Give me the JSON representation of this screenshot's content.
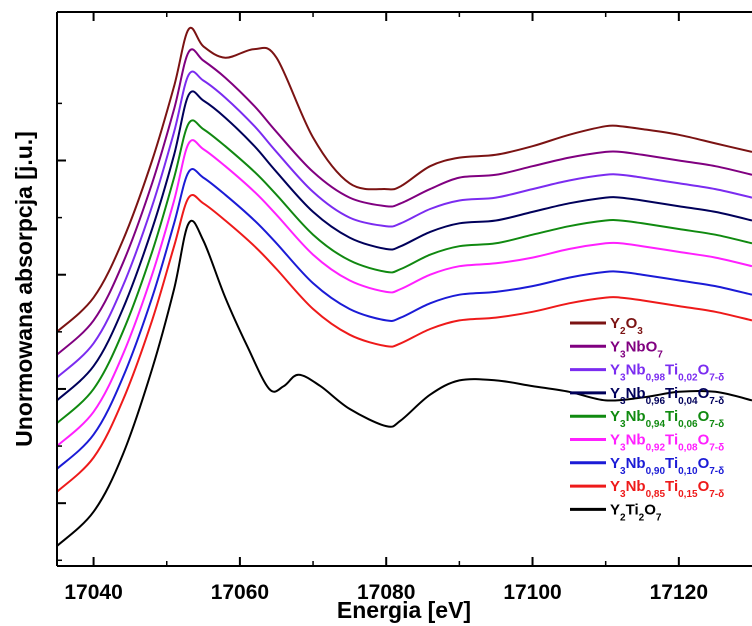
{
  "chart_data": {
    "type": "line",
    "xlabel": "Energia [eV]",
    "ylabel": "Unormowana absorpcja [j.u.]",
    "xlim": [
      17035,
      17130
    ],
    "ylim": [
      -0.1,
      9.6
    ],
    "x_ticks": [
      17040,
      17060,
      17080,
      17100,
      17120
    ],
    "x_tick_labels": [
      "17040",
      "17060",
      "17080",
      "17100",
      "17120"
    ],
    "y_ticks": [
      1.0,
      3.0,
      5.0,
      7.0
    ],
    "y_tick_labels": [],
    "legend_position": "lower-right",
    "series": [
      {
        "name": "Y2O3",
        "label_parts": [
          [
            "Y",
            0
          ],
          [
            "2",
            1
          ],
          [
            "O",
            0
          ],
          [
            "3",
            1
          ]
        ],
        "color": "#7b1313",
        "x": [
          17035,
          17040,
          17044,
          17048,
          17051,
          17053,
          17055,
          17058,
          17062,
          17065,
          17070,
          17075,
          17080,
          17082,
          17086,
          17090,
          17095,
          17100,
          17105,
          17110,
          17112,
          17115,
          17120,
          17125,
          17130
        ],
        "y": [
          4.0,
          4.6,
          5.6,
          7.0,
          8.3,
          9.3,
          9.0,
          8.8,
          8.95,
          8.8,
          7.4,
          6.6,
          6.5,
          6.55,
          6.9,
          7.05,
          7.1,
          7.25,
          7.45,
          7.6,
          7.6,
          7.55,
          7.45,
          7.3,
          7.15
        ]
      },
      {
        "name": "Y3NbO7",
        "label_parts": [
          [
            "Y",
            0
          ],
          [
            "3",
            1
          ],
          [
            "NbO",
            0
          ],
          [
            "7",
            1
          ]
        ],
        "color": "#800080",
        "x": [
          17035,
          17040,
          17044,
          17048,
          17051,
          17053,
          17055,
          17058,
          17062,
          17065,
          17070,
          17075,
          17080,
          17082,
          17086,
          17090,
          17095,
          17100,
          17105,
          17110,
          17112,
          17115,
          17120,
          17125,
          17130
        ],
        "y": [
          3.6,
          4.2,
          5.2,
          6.6,
          7.9,
          8.9,
          8.75,
          8.45,
          7.95,
          7.5,
          6.8,
          6.35,
          6.2,
          6.25,
          6.5,
          6.7,
          6.75,
          6.9,
          7.05,
          7.15,
          7.15,
          7.1,
          7.0,
          6.9,
          6.75
        ]
      },
      {
        "name": "Y3Nb0,98Ti0,02O7-δ",
        "label_parts": [
          [
            "Y",
            0
          ],
          [
            "3",
            1
          ],
          [
            "Nb",
            0
          ],
          [
            "0,98",
            1
          ],
          [
            "Ti",
            0
          ],
          [
            "0,02",
            1
          ],
          [
            "O",
            0
          ],
          [
            "7-δ",
            1
          ]
        ],
        "color": "#7b2cf0",
        "x": [
          17035,
          17040,
          17044,
          17048,
          17051,
          17053,
          17055,
          17058,
          17062,
          17065,
          17070,
          17075,
          17080,
          17082,
          17086,
          17090,
          17095,
          17100,
          17105,
          17110,
          17112,
          17115,
          17120,
          17125,
          17130
        ],
        "y": [
          3.2,
          3.8,
          4.8,
          6.2,
          7.5,
          8.5,
          8.4,
          8.1,
          7.6,
          7.15,
          6.45,
          6.0,
          5.85,
          5.9,
          6.15,
          6.3,
          6.35,
          6.5,
          6.65,
          6.75,
          6.75,
          6.7,
          6.6,
          6.5,
          6.35
        ]
      },
      {
        "name": "Y3Nb0,96Ti0,04O7-δ",
        "label_parts": [
          [
            "Y",
            0
          ],
          [
            "3",
            1
          ],
          [
            "Nb",
            0
          ],
          [
            "0,96",
            1
          ],
          [
            "Ti",
            0
          ],
          [
            "0,04",
            1
          ],
          [
            "O",
            0
          ],
          [
            "7-δ",
            1
          ]
        ],
        "color": "#00005a",
        "x": [
          17035,
          17040,
          17044,
          17048,
          17051,
          17053,
          17055,
          17058,
          17062,
          17065,
          17070,
          17075,
          17080,
          17082,
          17086,
          17090,
          17095,
          17100,
          17105,
          17110,
          17112,
          17115,
          17120,
          17125,
          17130
        ],
        "y": [
          2.8,
          3.4,
          4.4,
          5.8,
          7.1,
          8.15,
          8.05,
          7.75,
          7.25,
          6.8,
          6.1,
          5.65,
          5.45,
          5.5,
          5.75,
          5.9,
          5.95,
          6.1,
          6.25,
          6.35,
          6.35,
          6.3,
          6.2,
          6.1,
          5.95
        ]
      },
      {
        "name": "Y3Nb0,94Ti0,06O7-δ",
        "label_parts": [
          [
            "Y",
            0
          ],
          [
            "3",
            1
          ],
          [
            "Nb",
            0
          ],
          [
            "0,94",
            1
          ],
          [
            "Ti",
            0
          ],
          [
            "0,06",
            1
          ],
          [
            "O",
            0
          ],
          [
            "7-δ",
            1
          ]
        ],
        "color": "#108a10",
        "x": [
          17035,
          17040,
          17044,
          17048,
          17051,
          17053,
          17055,
          17058,
          17062,
          17065,
          17070,
          17075,
          17080,
          17082,
          17086,
          17090,
          17095,
          17100,
          17105,
          17110,
          17112,
          17115,
          17120,
          17125,
          17130
        ],
        "y": [
          2.4,
          3.0,
          4.0,
          5.4,
          6.7,
          7.65,
          7.55,
          7.25,
          6.8,
          6.4,
          5.7,
          5.25,
          5.05,
          5.1,
          5.35,
          5.5,
          5.55,
          5.7,
          5.85,
          5.95,
          5.95,
          5.9,
          5.8,
          5.7,
          5.55
        ]
      },
      {
        "name": "Y3Nb0,92Ti0,08O7-δ",
        "label_parts": [
          [
            "Y",
            0
          ],
          [
            "3",
            1
          ],
          [
            "Nb",
            0
          ],
          [
            "0,92",
            1
          ],
          [
            "Ti",
            0
          ],
          [
            "0,08",
            1
          ],
          [
            "O",
            0
          ],
          [
            "7-δ",
            1
          ]
        ],
        "color": "#ff20ff",
        "x": [
          17035,
          17040,
          17044,
          17048,
          17051,
          17053,
          17055,
          17058,
          17062,
          17065,
          17070,
          17075,
          17080,
          17082,
          17086,
          17090,
          17095,
          17100,
          17105,
          17110,
          17112,
          17115,
          17120,
          17125,
          17130
        ],
        "y": [
          2.0,
          2.6,
          3.6,
          5.0,
          6.3,
          7.3,
          7.2,
          6.9,
          6.45,
          6.05,
          5.35,
          4.9,
          4.7,
          4.75,
          5.0,
          5.15,
          5.2,
          5.3,
          5.45,
          5.55,
          5.55,
          5.5,
          5.4,
          5.3,
          5.15
        ]
      },
      {
        "name": "Y3Nb0,90Ti0,10O7-δ",
        "label_parts": [
          [
            "Y",
            0
          ],
          [
            "3",
            1
          ],
          [
            "Nb",
            0
          ],
          [
            "0,90",
            1
          ],
          [
            "Ti",
            0
          ],
          [
            "0,10",
            1
          ],
          [
            "O",
            0
          ],
          [
            "7-δ",
            1
          ]
        ],
        "color": "#1b1bd6",
        "x": [
          17035,
          17040,
          17044,
          17048,
          17051,
          17053,
          17055,
          17058,
          17062,
          17065,
          17070,
          17075,
          17080,
          17082,
          17086,
          17090,
          17095,
          17100,
          17105,
          17110,
          17112,
          17115,
          17120,
          17125,
          17130
        ],
        "y": [
          1.6,
          2.2,
          3.2,
          4.6,
          5.9,
          6.8,
          6.7,
          6.4,
          5.95,
          5.55,
          4.85,
          4.4,
          4.2,
          4.25,
          4.5,
          4.65,
          4.7,
          4.8,
          4.95,
          5.05,
          5.05,
          5.0,
          4.9,
          4.8,
          4.65
        ]
      },
      {
        "name": "Y3Nb0,85Ti0,15O7-δ",
        "label_parts": [
          [
            "Y",
            0
          ],
          [
            "3",
            1
          ],
          [
            "Nb",
            0
          ],
          [
            "0,85",
            1
          ],
          [
            "Ti",
            0
          ],
          [
            "0,15",
            1
          ],
          [
            "O",
            0
          ],
          [
            "7-δ",
            1
          ]
        ],
        "color": "#ee1a1a",
        "x": [
          17035,
          17040,
          17044,
          17048,
          17051,
          17053,
          17055,
          17058,
          17062,
          17065,
          17070,
          17075,
          17080,
          17082,
          17086,
          17090,
          17095,
          17100,
          17105,
          17110,
          17112,
          17115,
          17120,
          17125,
          17130
        ],
        "y": [
          1.2,
          1.8,
          2.8,
          4.2,
          5.5,
          6.35,
          6.25,
          5.95,
          5.5,
          5.1,
          4.4,
          3.95,
          3.75,
          3.8,
          4.05,
          4.2,
          4.25,
          4.35,
          4.5,
          4.6,
          4.6,
          4.55,
          4.45,
          4.35,
          4.2
        ]
      },
      {
        "name": "Y2Ti2O7",
        "label_parts": [
          [
            "Y",
            0
          ],
          [
            "2",
            1
          ],
          [
            "Ti",
            0
          ],
          [
            "2",
            1
          ],
          [
            "O",
            0
          ],
          [
            "7",
            1
          ]
        ],
        "color": "#000000",
        "x": [
          17035,
          17040,
          17044,
          17048,
          17051,
          17053,
          17055,
          17058,
          17061,
          17064,
          17066,
          17068,
          17071,
          17075,
          17080,
          17082,
          17086,
          17090,
          17095,
          17100,
          17105,
          17110,
          17115,
          17120,
          17125,
          17130
        ],
        "y": [
          0.25,
          0.85,
          1.85,
          3.35,
          4.75,
          5.9,
          5.6,
          4.6,
          3.75,
          3.0,
          3.05,
          3.25,
          3.05,
          2.65,
          2.35,
          2.45,
          2.9,
          3.15,
          3.15,
          3.05,
          2.95,
          2.8,
          2.85,
          2.95,
          2.95,
          2.8
        ]
      }
    ]
  }
}
